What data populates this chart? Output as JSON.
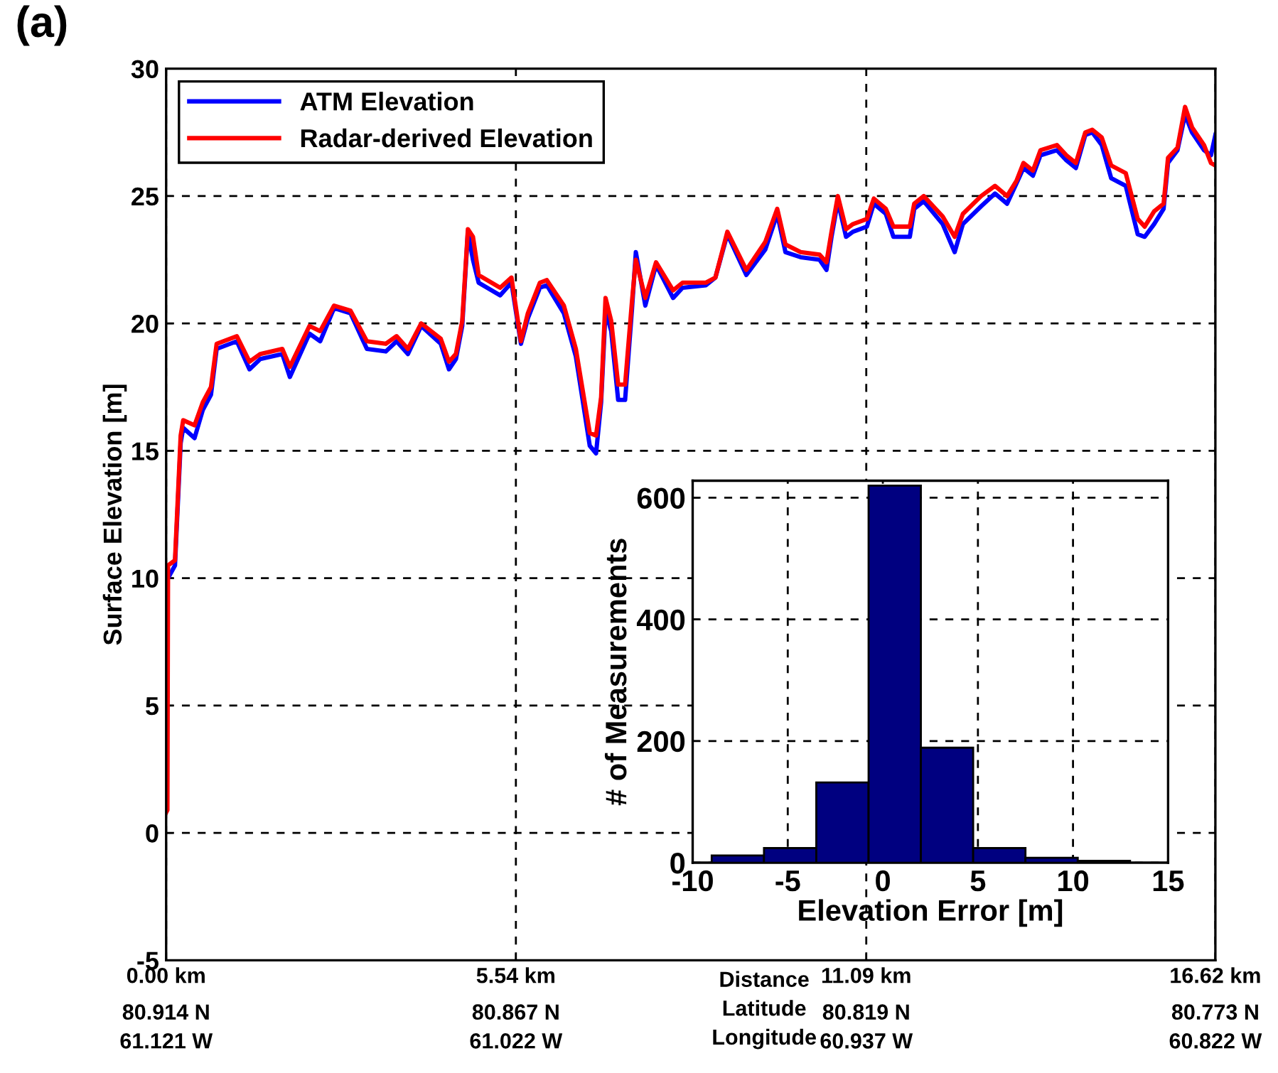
{
  "chart_data": [
    {
      "type": "line",
      "title": "(a)",
      "ylabel": "Surface Elevation [m]",
      "legend": "top left",
      "grid": true,
      "x": [
        0,
        0.02,
        0.03,
        0.14,
        0.23,
        0.27,
        0.45,
        0.58,
        0.71,
        0.8,
        1.12,
        1.32,
        1.49,
        1.84,
        1.96,
        2.27,
        2.44,
        2.66,
        2.92,
        3.18,
        3.48,
        3.65,
        3.83,
        4.04,
        4.35,
        4.48,
        4.59,
        4.69,
        4.78,
        4.86,
        4.95,
        5.29,
        5.47,
        5.62,
        5.73,
        5.92,
        6.03,
        6.3,
        6.49,
        6.71,
        6.81,
        6.89,
        6.96,
        7.05,
        7.16,
        7.27,
        7.38,
        7.44,
        7.59,
        7.76,
        8.03,
        8.18,
        8.55,
        8.7,
        8.89,
        9.19,
        9.49,
        9.68,
        9.81,
        10.05,
        10.35,
        10.46,
        10.54,
        10.64,
        10.77,
        10.88,
        11.1,
        11.21,
        11.4,
        11.52,
        11.78,
        11.85,
        12.0,
        12.3,
        12.49,
        12.62,
        12.91,
        13.13,
        13.32,
        13.47,
        13.58,
        13.73,
        13.85,
        14.11,
        14.26,
        14.41,
        14.56,
        14.67,
        14.82,
        14.97,
        15.2,
        15.39,
        15.5,
        15.65,
        15.8,
        15.87,
        16.02,
        16.14,
        16.25,
        16.44,
        16.55,
        16.62
      ],
      "series": [
        {
          "name": "ATM Elevation",
          "color": "#0000ff",
          "values": [
            null,
            null,
            10.0,
            10.5,
            15.3,
            15.9,
            15.5,
            16.6,
            17.2,
            19.0,
            19.3,
            18.2,
            18.6,
            18.8,
            17.9,
            19.6,
            19.3,
            20.6,
            20.4,
            19.0,
            18.9,
            19.3,
            18.8,
            19.9,
            19.2,
            18.2,
            18.6,
            19.9,
            23.6,
            22.5,
            21.6,
            21.1,
            21.6,
            19.2,
            20.2,
            21.4,
            21.5,
            20.4,
            18.7,
            15.2,
            14.9,
            16.9,
            20.5,
            19.7,
            17.0,
            17.0,
            20.6,
            22.8,
            20.7,
            22.3,
            21.0,
            21.4,
            21.5,
            21.8,
            23.5,
            21.9,
            22.9,
            24.3,
            22.8,
            22.6,
            22.5,
            22.1,
            23.4,
            24.8,
            23.4,
            23.6,
            23.8,
            24.7,
            24.3,
            23.4,
            23.4,
            24.5,
            24.8,
            23.9,
            22.8,
            23.9,
            24.6,
            25.1,
            24.7,
            25.5,
            26.1,
            25.8,
            26.6,
            26.8,
            26.4,
            26.1,
            27.4,
            27.5,
            27.0,
            25.7,
            25.4,
            23.5,
            23.4,
            23.9,
            24.5,
            26.3,
            26.8,
            28.2,
            27.5,
            26.8,
            26.6,
            27.4
          ]
        },
        {
          "name": "Radar-derived Elevation",
          "color": "#ff0000",
          "values": [
            0.8,
            0.9,
            10.5,
            10.7,
            15.6,
            16.2,
            16.0,
            16.9,
            17.5,
            19.2,
            19.5,
            18.5,
            18.8,
            19.0,
            18.3,
            19.9,
            19.7,
            20.7,
            20.5,
            19.3,
            19.2,
            19.5,
            19.0,
            20.0,
            19.4,
            18.5,
            18.8,
            20.1,
            23.7,
            23.4,
            21.9,
            21.4,
            21.8,
            19.3,
            20.4,
            21.6,
            21.7,
            20.7,
            19.0,
            15.7,
            15.6,
            17.1,
            21.0,
            20.1,
            17.6,
            17.6,
            20.9,
            22.5,
            21.0,
            22.4,
            21.3,
            21.6,
            21.6,
            21.8,
            23.6,
            22.1,
            23.2,
            24.5,
            23.1,
            22.8,
            22.7,
            22.4,
            23.6,
            25.0,
            23.7,
            23.9,
            24.1,
            24.9,
            24.5,
            23.8,
            23.8,
            24.7,
            25.0,
            24.2,
            23.4,
            24.3,
            25.0,
            25.4,
            25.0,
            25.6,
            26.3,
            26.0,
            26.8,
            27.0,
            26.6,
            26.3,
            27.5,
            27.6,
            27.3,
            26.2,
            25.9,
            24.1,
            23.8,
            24.4,
            24.7,
            26.5,
            26.9,
            28.5,
            27.7,
            27.0,
            26.3,
            26.2
          ]
        }
      ],
      "xlim": [
        0,
        16.62
      ],
      "xticks": [
        {
          "value": 0,
          "label": "0.00 km"
        },
        {
          "value": 5.54,
          "label": "5.54 km"
        },
        {
          "value": 11.09,
          "label": "11.09 km"
        },
        {
          "value": 16.62,
          "label": "16.62 km"
        }
      ],
      "ylim": [
        -5,
        30
      ],
      "yticks": [
        -5,
        0,
        5,
        10,
        15,
        20,
        25,
        30
      ],
      "annotations": [
        "Distance\nLatitude\nLongitude",
        "80.914 N\n61.121 W",
        "80.867 N\n61.022 W",
        "80.819 N\n60.937 W",
        "80.773 N\n60.822 W"
      ]
    },
    {
      "type": "histogram",
      "xlabel": "Elevation Error [m]",
      "ylabel": "# of Measurements",
      "grid": true,
      "color": "#000080",
      "bins": [
        -9.0,
        -6.25,
        -3.5,
        -0.75,
        2.0,
        4.75,
        7.5,
        10.25,
        13.0
      ],
      "values": [
        12,
        24,
        132,
        620,
        189,
        24,
        8,
        3
      ],
      "xlim": [
        -10,
        15
      ],
      "xticks": [
        -10,
        -5,
        0,
        5,
        10,
        15
      ],
      "ylim": [
        0,
        628
      ],
      "yticks": [
        0,
        200,
        400,
        600
      ]
    }
  ]
}
